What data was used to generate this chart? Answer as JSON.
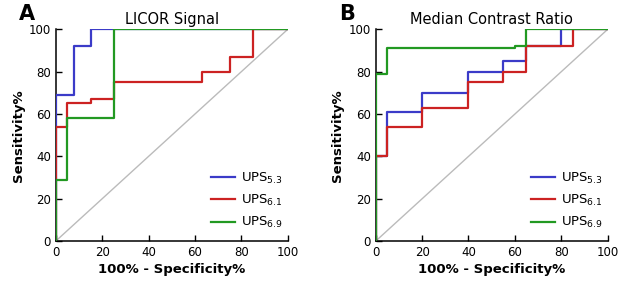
{
  "panel_A_title": "LICOR Signal",
  "panel_B_title": "Median Contrast Ratio",
  "panel_A_label": "A",
  "panel_B_label": "B",
  "xlabel": "100% - Specificity%",
  "ylabel": "Sensitivity%",
  "xlim": [
    0,
    100
  ],
  "ylim": [
    0,
    100
  ],
  "xticks": [
    0,
    20,
    40,
    60,
    80,
    100
  ],
  "yticks": [
    0,
    20,
    40,
    60,
    80,
    100
  ],
  "color_blue": "#3B3BC8",
  "color_red": "#CC2222",
  "color_green": "#229922",
  "color_diagonal": "#BBBBBB",
  "panel_A": {
    "UPS53": {
      "x": [
        0,
        0,
        8,
        8,
        15,
        15,
        25,
        25,
        100
      ],
      "y": [
        0,
        69,
        69,
        92,
        92,
        100,
        100,
        100,
        100
      ]
    },
    "UPS61": {
      "x": [
        0,
        0,
        5,
        5,
        15,
        15,
        25,
        25,
        63,
        63,
        75,
        75,
        85,
        85,
        100
      ],
      "y": [
        0,
        54,
        54,
        65,
        65,
        67,
        67,
        75,
        75,
        80,
        80,
        87,
        87,
        100,
        100
      ]
    },
    "UPS69": {
      "x": [
        0,
        0,
        5,
        5,
        25,
        25,
        100
      ],
      "y": [
        0,
        29,
        29,
        58,
        58,
        100,
        100
      ]
    }
  },
  "panel_B": {
    "UPS53": {
      "x": [
        0,
        0,
        5,
        5,
        20,
        20,
        40,
        40,
        55,
        55,
        65,
        65,
        80,
        80,
        100
      ],
      "y": [
        0,
        40,
        40,
        61,
        61,
        70,
        70,
        80,
        80,
        85,
        85,
        92,
        92,
        100,
        100
      ]
    },
    "UPS61": {
      "x": [
        0,
        0,
        5,
        5,
        20,
        20,
        40,
        40,
        55,
        55,
        65,
        65,
        85,
        85,
        100
      ],
      "y": [
        0,
        40,
        40,
        54,
        54,
        63,
        63,
        75,
        75,
        80,
        80,
        92,
        92,
        100,
        100
      ]
    },
    "UPS69": {
      "x": [
        0,
        0,
        5,
        5,
        60,
        60,
        65,
        65,
        85,
        85,
        100
      ],
      "y": [
        0,
        79,
        79,
        91,
        91,
        92,
        92,
        100,
        100,
        100,
        100
      ]
    }
  },
  "title_fontsize": 10.5,
  "label_fontsize": 9.5,
  "tick_fontsize": 8.5,
  "legend_fontsize": 9.5,
  "panel_label_fontsize": 15,
  "linewidth": 1.6
}
